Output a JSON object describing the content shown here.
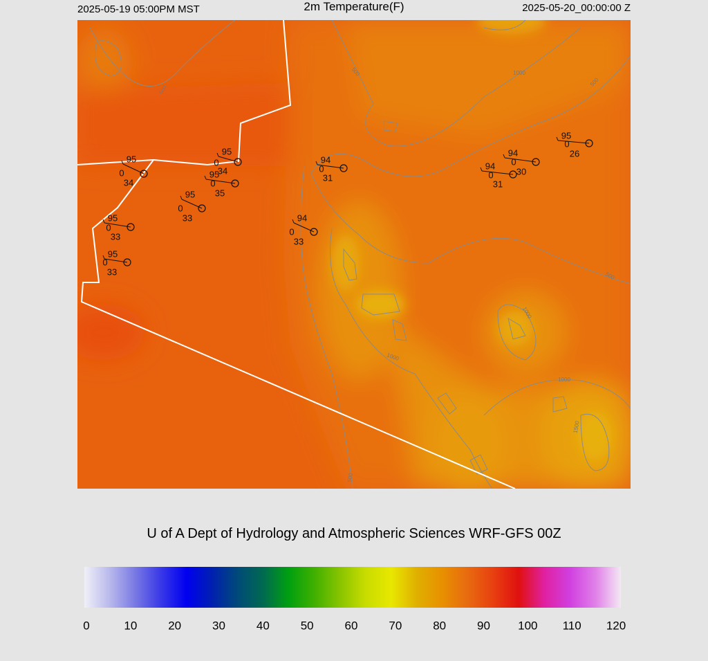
{
  "header": {
    "left": "2025-05-19 05:00PM MST",
    "title": "2m Temperature(F)",
    "right": "2025-05-20_00:00:00 Z"
  },
  "stations": [
    {
      "temp": 95,
      "wind": 0,
      "dew": 34
    },
    {
      "temp": 95,
      "wind": 0,
      "dew": 34
    },
    {
      "temp": 95,
      "wind": 0,
      "dew": 35
    },
    {
      "temp": 95,
      "wind": 0,
      "dew": 33
    },
    {
      "temp": 95,
      "wind": 0,
      "dew": 33
    },
    {
      "temp": 95,
      "wind": 0,
      "dew": 33
    },
    {
      "temp": 94,
      "wind": 0,
      "dew": 31
    },
    {
      "temp": 94,
      "wind": 0,
      "dew": 33
    },
    {
      "temp": 94,
      "wind": 0,
      "dew": 31
    },
    {
      "temp": 94,
      "wind": 0,
      "dew": 30
    },
    {
      "temp": 95,
      "wind": 0,
      "dew": 26
    }
  ],
  "contour_labels": [
    500,
    500,
    1000,
    500,
    500,
    1000,
    1000,
    1000,
    1500,
    500
  ],
  "credit": "U of A Dept of Hydrology and Atmospheric Sciences WRF-GFS 00Z",
  "colorbar": {
    "lim": [
      0,
      120
    ],
    "ticks": [
      0,
      10,
      20,
      30,
      40,
      50,
      60,
      70,
      80,
      90,
      100,
      110,
      120
    ],
    "colors": [
      "#f0f0f8",
      "#b8b8ec",
      "#7878e4",
      "#3838e8",
      "#0000f0",
      "#0020b0",
      "#004a78",
      "#006a50",
      "#00a010",
      "#40b000",
      "#88c400",
      "#c8dc00",
      "#e8e800",
      "#e0b000",
      "#e89000",
      "#e86a10",
      "#e84010",
      "#e01010",
      "#e020a0",
      "#d040e0",
      "#e080e8",
      "#f4e8f4"
    ]
  }
}
